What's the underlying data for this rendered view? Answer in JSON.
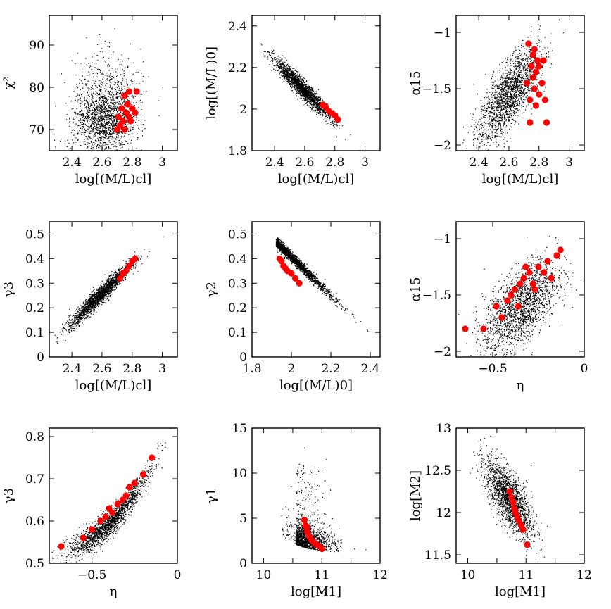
{
  "figure": {
    "background": "#ffffff",
    "cloud_color": "#000000",
    "highlight_color": "#ff0000"
  },
  "chart_data": [
    {
      "id": "p1",
      "type": "scatter",
      "title": "",
      "xlabel": "log[(M/L)cl]",
      "ylabel": "χ²",
      "xlim": [
        2.25,
        3.1
      ],
      "ylim": [
        65,
        97
      ],
      "xticks": [
        2.4,
        2.6,
        2.8,
        3
      ],
      "xtick_labels": [
        "2.4",
        "2.6",
        "2.8",
        "3"
      ],
      "yticks": [
        70,
        80,
        90
      ],
      "ytick_labels": [
        "70",
        "80",
        "90"
      ],
      "background_points": {
        "count": 2000,
        "x": [
          2.3,
          2.95
        ],
        "y": [
          65,
          90
        ],
        "shape": "scattered blob centred at x≈2.62, y≈72"
      },
      "highlighted": {
        "x": [
          2.7,
          2.71,
          2.72,
          2.73,
          2.74,
          2.75,
          2.76,
          2.77,
          2.78,
          2.79,
          2.8,
          2.82,
          2.83,
          2.75,
          2.78
        ],
        "y": [
          70,
          73,
          71,
          75,
          72,
          78,
          74,
          76,
          79,
          72,
          75,
          74,
          79,
          70,
          73
        ]
      }
    },
    {
      "id": "p2",
      "type": "scatter",
      "title": "",
      "xlabel": "log[(M/L)cl]",
      "ylabel": "log[(M/L)0]",
      "xlim": [
        2.25,
        3.1
      ],
      "ylim": [
        1.8,
        2.45
      ],
      "xticks": [
        2.4,
        2.6,
        2.8,
        3
      ],
      "xtick_labels": [
        "2.4",
        "2.6",
        "2.8",
        "3"
      ],
      "yticks": [
        1.8,
        2,
        2.2,
        2.4
      ],
      "ytick_labels": [
        "1.8",
        "2",
        "2.2",
        "2.4"
      ],
      "background_points": {
        "count": 2200,
        "x": [
          2.3,
          2.9
        ],
        "y": [
          1.9,
          2.35
        ],
        "shape": "tight decreasing band"
      },
      "highlighted": {
        "x": [
          2.72,
          2.74,
          2.76,
          2.78,
          2.8,
          2.82
        ],
        "y": [
          2.02,
          2.01,
          1.99,
          1.98,
          1.97,
          1.95
        ]
      }
    },
    {
      "id": "p3",
      "type": "scatter",
      "title": "",
      "xlabel": "log[(M/L)cl]",
      "ylabel": "α15",
      "xlim": [
        2.25,
        3.1
      ],
      "ylim": [
        -2.05,
        -0.85
      ],
      "xticks": [
        2.4,
        2.6,
        2.8,
        3
      ],
      "xtick_labels": [
        "2.4",
        "2.6",
        "2.8",
        "3"
      ],
      "yticks": [
        -2,
        -1.5,
        -1
      ],
      "ytick_labels": [
        "−2",
        "−1.5",
        "−1"
      ],
      "background_points": {
        "count": 2000,
        "x": [
          2.3,
          2.9
        ],
        "y": [
          -2.0,
          -1.05
        ],
        "shape": "broad increasing cloud"
      },
      "highlighted": {
        "x": [
          2.73,
          2.74,
          2.75,
          2.76,
          2.77,
          2.78,
          2.79,
          2.8,
          2.82,
          2.84,
          2.85,
          2.74,
          2.76,
          2.78,
          2.8,
          2.72,
          2.83,
          2.77
        ],
        "y": [
          -1.1,
          -1.8,
          -1.3,
          -1.2,
          -1.5,
          -1.35,
          -1.25,
          -1.55,
          -1.45,
          -1.6,
          -1.8,
          -1.6,
          -1.4,
          -1.65,
          -1.3,
          -1.45,
          -1.25,
          -1.15
        ]
      }
    },
    {
      "id": "p4",
      "type": "scatter",
      "title": "",
      "xlabel": "log[(M/L)cl]",
      "ylabel": "γ3",
      "xlim": [
        2.25,
        3.1
      ],
      "ylim": [
        0,
        0.55
      ],
      "xticks": [
        2.4,
        2.6,
        2.8,
        3
      ],
      "xtick_labels": [
        "2.4",
        "2.6",
        "2.8",
        "3"
      ],
      "yticks": [
        0,
        0.1,
        0.2,
        0.3,
        0.4,
        0.5
      ],
      "ytick_labels": [
        "0",
        "0.1",
        "0.2",
        "0.3",
        "0.4",
        "0.5"
      ],
      "background_points": {
        "count": 2200,
        "x": [
          2.28,
          3.0
        ],
        "y": [
          0.08,
          0.5
        ],
        "shape": "tight increasing band"
      },
      "highlighted": {
        "x": [
          2.72,
          2.74,
          2.76,
          2.78,
          2.8,
          2.82
        ],
        "y": [
          0.32,
          0.34,
          0.35,
          0.37,
          0.39,
          0.4
        ]
      }
    },
    {
      "id": "p5",
      "type": "scatter",
      "title": "",
      "xlabel": "log[(M/L)0]",
      "ylabel": "γ2",
      "xlim": [
        1.8,
        2.45
      ],
      "ylim": [
        0,
        0.55
      ],
      "xticks": [
        1.8,
        2,
        2.2,
        2.4
      ],
      "xtick_labels": [
        "1.8",
        "2",
        "2.2",
        "2.4"
      ],
      "yticks": [
        0,
        0.1,
        0.2,
        0.3,
        0.4,
        0.5
      ],
      "ytick_labels": [
        "0",
        "0.1",
        "0.2",
        "0.3",
        "0.4",
        "0.5"
      ],
      "background_points": {
        "count": 2200,
        "x": [
          1.9,
          2.38
        ],
        "y": [
          0.05,
          0.5
        ],
        "shape": "thin decreasing curve"
      },
      "highlighted": {
        "x": [
          1.94,
          1.95,
          1.96,
          1.97,
          1.98,
          2.0,
          2.02,
          2.04
        ],
        "y": [
          0.4,
          0.39,
          0.37,
          0.36,
          0.35,
          0.34,
          0.32,
          0.3
        ]
      }
    },
    {
      "id": "p6",
      "type": "scatter",
      "title": "",
      "xlabel": "η",
      "ylabel": "α15",
      "xlim": [
        -0.7,
        0
      ],
      "ylim": [
        -2.05,
        -0.85
      ],
      "xticks": [
        -0.5,
        0
      ],
      "xtick_labels": [
        "−0.5",
        "0"
      ],
      "yticks": [
        -2,
        -1.5,
        -1
      ],
      "ytick_labels": [
        "−2",
        "−1.5",
        "−1"
      ],
      "background_points": {
        "count": 2000,
        "x": [
          -0.6,
          -0.05
        ],
        "y": [
          -2.0,
          -1.0
        ],
        "shape": "broad increasing cloud"
      },
      "highlighted": {
        "x": [
          -0.65,
          -0.55,
          -0.48,
          -0.45,
          -0.42,
          -0.4,
          -0.38,
          -0.36,
          -0.35,
          -0.33,
          -0.3,
          -0.28,
          -0.25,
          -0.22,
          -0.2,
          -0.18,
          -0.15,
          -0.13,
          -0.32,
          -0.27
        ],
        "y": [
          -1.8,
          -1.8,
          -1.6,
          -1.7,
          -1.55,
          -1.5,
          -1.45,
          -1.6,
          -1.4,
          -1.35,
          -1.3,
          -1.4,
          -1.25,
          -1.3,
          -1.2,
          -1.35,
          -1.15,
          -1.1,
          -1.25,
          -1.45
        ]
      }
    },
    {
      "id": "p7",
      "type": "scatter",
      "title": "",
      "xlabel": "η",
      "ylabel": "γ3",
      "xlim": [
        -0.75,
        0
      ],
      "ylim": [
        0.5,
        0.82
      ],
      "xticks": [
        -0.5,
        0
      ],
      "xtick_labels": [
        "−0.5",
        "0"
      ],
      "yticks": [
        0.5,
        0.6,
        0.7,
        0.8
      ],
      "ytick_labels": [
        "0.5",
        "0.6",
        "0.7",
        "0.8"
      ],
      "background_points": {
        "count": 2000,
        "x": [
          -0.7,
          -0.05
        ],
        "y": [
          0.52,
          0.8
        ],
        "shape": "curved increasing band"
      },
      "highlighted": {
        "x": [
          -0.68,
          -0.55,
          -0.5,
          -0.45,
          -0.42,
          -0.4,
          -0.38,
          -0.35,
          -0.32,
          -0.3,
          -0.28,
          -0.25,
          -0.2,
          -0.15
        ],
        "y": [
          0.54,
          0.56,
          0.58,
          0.6,
          0.61,
          0.63,
          0.62,
          0.64,
          0.65,
          0.66,
          0.68,
          0.69,
          0.71,
          0.75
        ]
      }
    },
    {
      "id": "p8",
      "type": "scatter",
      "title": "",
      "xlabel": "log[M1]",
      "ylabel": "γ1",
      "xlim": [
        9.8,
        12
      ],
      "ylim": [
        0,
        15
      ],
      "xticks": [
        10,
        10.5,
        11,
        11.5,
        12
      ],
      "xtick_labels": [
        "10",
        "",
        "11",
        "",
        "12"
      ],
      "yticks": [
        0,
        5,
        10,
        15
      ],
      "ytick_labels": [
        "0",
        "5",
        "10",
        "15"
      ],
      "background_points": {
        "count": 2000,
        "x": [
          10.3,
          11.5
        ],
        "y": [
          1,
          14
        ],
        "shape": "decaying curve"
      },
      "highlighted": {
        "x": [
          10.7,
          10.72,
          10.75,
          10.78,
          10.8,
          10.85,
          10.9,
          10.95,
          11.0,
          10.74,
          10.82,
          10.88
        ],
        "y": [
          4.8,
          4.2,
          3.5,
          3.0,
          2.8,
          2.4,
          2.1,
          1.9,
          1.6,
          4.0,
          2.6,
          2.2
        ]
      }
    },
    {
      "id": "p9",
      "type": "scatter",
      "title": "",
      "xlabel": "log[M1]",
      "ylabel": "log[M2]",
      "xlim": [
        9.8,
        12
      ],
      "ylim": [
        11.4,
        13
      ],
      "xticks": [
        10,
        10.5,
        11,
        11.5,
        12
      ],
      "xtick_labels": [
        "10",
        "",
        "11",
        "",
        "12"
      ],
      "yticks": [
        11.5,
        12,
        12.5,
        13
      ],
      "ytick_labels": [
        "11.5",
        "12",
        "12.5",
        "13"
      ],
      "background_points": {
        "count": 2000,
        "x": [
          10.3,
          11.5
        ],
        "y": [
          11.45,
          12.95
        ],
        "shape": "decreasing band"
      },
      "highlighted": {
        "x": [
          10.72,
          10.75,
          10.78,
          10.8,
          10.82,
          10.85,
          10.88,
          10.92,
          10.95,
          11.02
        ],
        "y": [
          12.25,
          12.18,
          12.12,
          12.05,
          12.0,
          11.95,
          11.9,
          11.85,
          11.8,
          11.62
        ]
      }
    }
  ]
}
